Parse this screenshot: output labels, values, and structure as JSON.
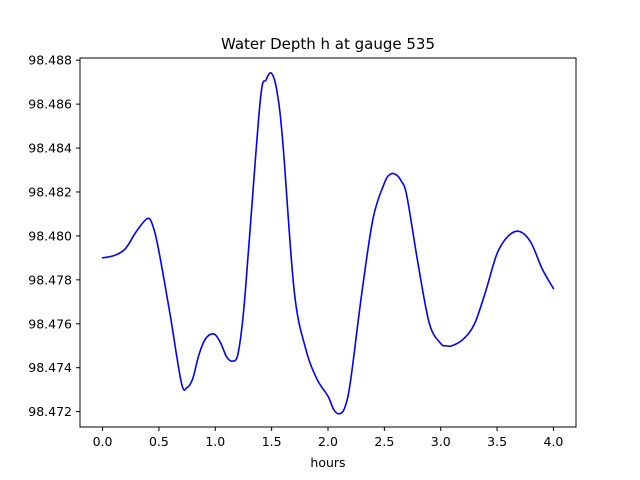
{
  "chart_data": {
    "type": "line",
    "title": "Water Depth h at gauge 535",
    "xlabel": "hours",
    "ylabel": "",
    "xlim": [
      -0.2,
      4.2
    ],
    "ylim": [
      98.4713,
      98.4881
    ],
    "xticks": [
      "0.0",
      "0.5",
      "1.0",
      "1.5",
      "2.0",
      "2.5",
      "3.0",
      "3.5",
      "4.0"
    ],
    "yticks": [
      "98.472",
      "98.474",
      "98.476",
      "98.478",
      "98.480",
      "98.482",
      "98.484",
      "98.486",
      "98.488"
    ],
    "grid": false,
    "series": [
      {
        "color": "#0000ff",
        "x": [
          0.0,
          0.1,
          0.2,
          0.3,
          0.4,
          0.45,
          0.5,
          0.6,
          0.7,
          0.75,
          0.8,
          0.85,
          0.9,
          0.95,
          1.0,
          1.05,
          1.1,
          1.15,
          1.2,
          1.25,
          1.3,
          1.4,
          1.45,
          1.5,
          1.55,
          1.6,
          1.7,
          1.8,
          1.9,
          2.0,
          2.05,
          2.1,
          2.15,
          2.2,
          2.3,
          2.4,
          2.5,
          2.55,
          2.6,
          2.65,
          2.7,
          2.8,
          2.9,
          3.0,
          3.05,
          3.1,
          3.2,
          3.3,
          3.4,
          3.5,
          3.6,
          3.7,
          3.8,
          3.9,
          4.0
        ],
        "y": [
          98.479,
          98.4791,
          98.4794,
          98.4802,
          98.4808,
          98.4804,
          98.4793,
          98.4764,
          98.4733,
          98.4731,
          98.4735,
          98.4745,
          98.4752,
          98.4755,
          98.4755,
          98.4751,
          98.4745,
          98.4743,
          98.4746,
          98.4765,
          98.4797,
          98.4862,
          98.4871,
          98.4874,
          98.4865,
          98.4842,
          98.4775,
          98.4749,
          98.4735,
          98.4727,
          98.4721,
          98.4719,
          98.4722,
          98.4734,
          98.4774,
          98.4808,
          98.4824,
          98.4828,
          98.4828,
          98.4825,
          98.4818,
          98.4787,
          98.476,
          98.4751,
          98.475,
          98.475,
          98.4753,
          98.476,
          98.4775,
          98.4792,
          98.48,
          98.4802,
          98.4797,
          98.4785,
          98.4776
        ]
      }
    ]
  }
}
